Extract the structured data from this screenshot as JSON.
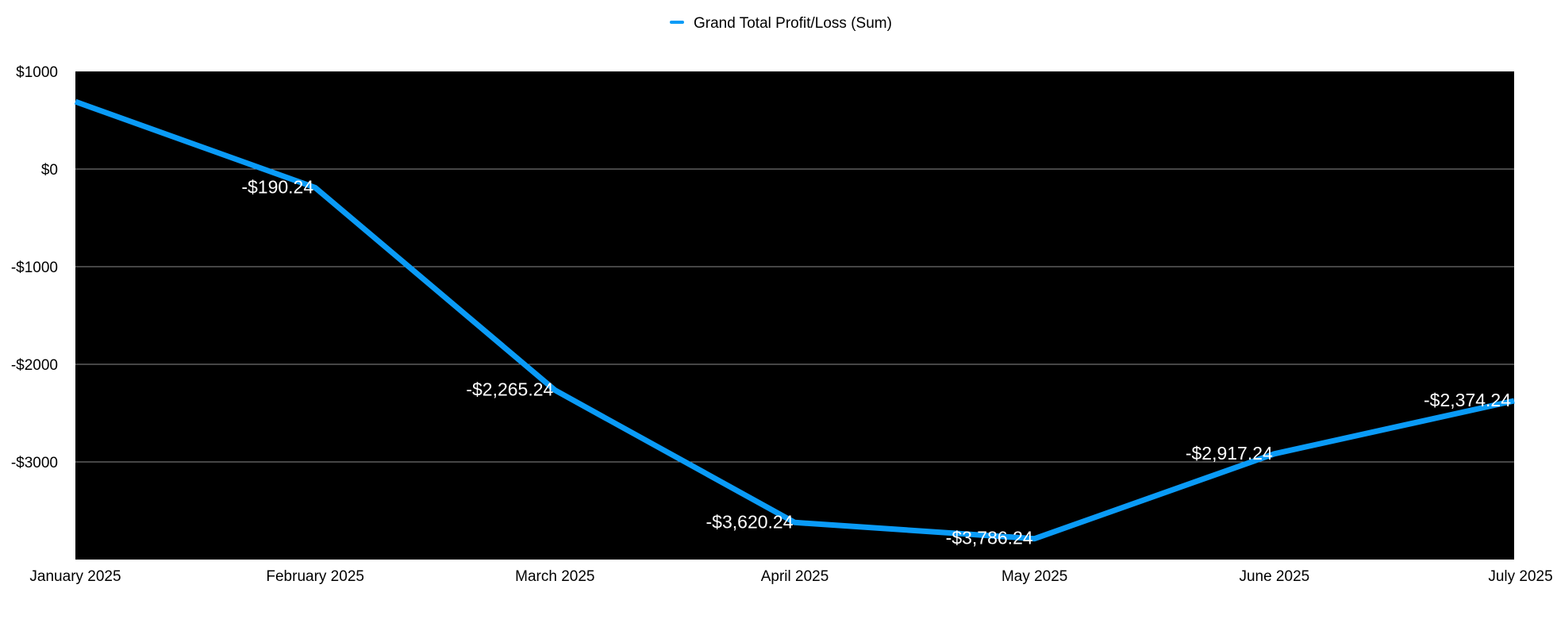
{
  "chart_data": {
    "type": "line",
    "title": "",
    "xlabel": "",
    "ylabel": "",
    "categories": [
      "January 2025",
      "February 2025",
      "March 2025",
      "April 2025",
      "May 2025",
      "June 2025",
      "July 2025"
    ],
    "series": [
      {
        "name": "Grand Total Profit/Loss (Sum)",
        "values": [
          690,
          -190.24,
          -2265.24,
          -3620.24,
          -3786.24,
          -2917.24,
          -2374.24
        ],
        "data_labels": [
          "",
          "-$190.24",
          "-$2,265.24",
          "-$3,620.24",
          "-$3,786.24",
          "-$2,917.24",
          "-$2,374.24"
        ],
        "color": "#0a9bf7"
      }
    ],
    "ylim": [
      -4000,
      1000
    ],
    "yticks": [
      1000,
      0,
      -1000,
      -2000,
      -3000
    ],
    "ytick_labels": [
      "$1000",
      "$0",
      "-$1000",
      "-$2000",
      "-$3000"
    ],
    "plot_background": "#000000",
    "gridline_color": "#8c8c8c",
    "grid": true,
    "legend_position": "top-center"
  }
}
